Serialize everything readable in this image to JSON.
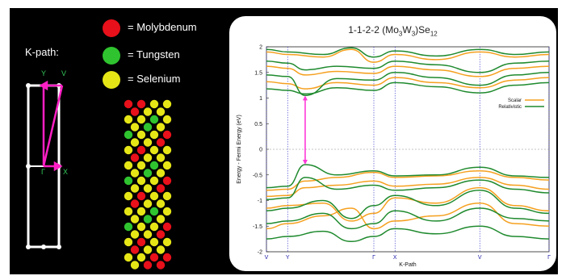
{
  "legend_atoms": [
    {
      "label": "= Molybdenum",
      "color": "#e8101a"
    },
    {
      "label": "= Tungsten",
      "color": "#2fc42f"
    },
    {
      "label": "= Selenium",
      "color": "#e6e617"
    }
  ],
  "kpath": {
    "title": "K-path:",
    "labels": {
      "Y": "Y",
      "V": "V",
      "Gamma": "Γ",
      "X": "X"
    }
  },
  "colors": {
    "panel": "#000000",
    "kpath_lines": "#ffffff",
    "kpath_arrows": "#ff1fc4",
    "kpath_labels": "#34c759",
    "scalar": "#f5a01f",
    "relativistic": "#1f8a2e",
    "gap_arrow": "#ff38d8",
    "kpoint_lines": "#2c2cc8"
  },
  "chart_data": {
    "type": "line",
    "title_parts": {
      "a": "1-1-2-2 (Mo",
      "b": "3",
      "c": "W",
      "d": "3",
      "e": ")Se",
      "f": "12"
    },
    "xlabel": "K-Path",
    "ylabel": "Energy - Fermi Energy (eV)",
    "ylim": [
      -2,
      2
    ],
    "yticks": [
      2,
      1.5,
      1,
      0.5,
      0,
      -0.5,
      -1,
      -1.5,
      -2
    ],
    "ytick_labels": [
      "2",
      "1.5",
      "1",
      "0.5",
      "0",
      "-0.5",
      "-1",
      "-1.5",
      "-2"
    ],
    "kpoints": [
      {
        "label": "V",
        "x": 0.0
      },
      {
        "label": "Y",
        "x": 0.075
      },
      {
        "label": "Γ",
        "x": 0.38
      },
      {
        "label": "X",
        "x": 0.455
      },
      {
        "label": "V",
        "x": 0.755
      },
      {
        "label": "Γ",
        "x": 1.0
      }
    ],
    "fermi_level": 0,
    "legend": [
      {
        "name": "Scalar",
        "color": "#f5a01f"
      },
      {
        "name": "Relativistic",
        "color": "#1f8a2e"
      }
    ],
    "band_gap_arrow": {
      "x": 0.137,
      "from": -0.3,
      "to": 1.05
    },
    "series": [
      {
        "name": "Scalar",
        "bands": [
          [
            [
              0,
              -0.8
            ],
            [
              0.075,
              -0.78
            ],
            [
              0.137,
              -0.62
            ],
            [
              0.25,
              -0.55
            ],
            [
              0.38,
              -0.45
            ],
            [
              0.455,
              -0.55
            ],
            [
              0.6,
              -0.52
            ],
            [
              0.755,
              -0.42
            ],
            [
              0.88,
              -0.55
            ],
            [
              1.0,
              -0.6
            ]
          ],
          [
            [
              0,
              -0.92
            ],
            [
              0.075,
              -0.9
            ],
            [
              0.137,
              -0.75
            ],
            [
              0.25,
              -0.7
            ],
            [
              0.38,
              -0.62
            ],
            [
              0.455,
              -0.72
            ],
            [
              0.6,
              -0.68
            ],
            [
              0.755,
              -0.55
            ],
            [
              0.88,
              -0.7
            ],
            [
              1.0,
              -0.78
            ]
          ],
          [
            [
              0,
              -1.15
            ],
            [
              0.075,
              -1.1
            ],
            [
              0.2,
              -1.05
            ],
            [
              0.3,
              -1.4
            ],
            [
              0.38,
              -1.25
            ],
            [
              0.455,
              -0.95
            ],
            [
              0.6,
              -1.05
            ],
            [
              0.755,
              -0.75
            ],
            [
              0.88,
              -1.1
            ],
            [
              1.0,
              -1.2
            ]
          ],
          [
            [
              0,
              -1.55
            ],
            [
              0.075,
              -1.45
            ],
            [
              0.2,
              -1.3
            ],
            [
              0.3,
              -1.15
            ],
            [
              0.38,
              -1.55
            ],
            [
              0.455,
              -1.4
            ],
            [
              0.6,
              -1.3
            ],
            [
              0.755,
              -1.05
            ],
            [
              0.88,
              -1.45
            ],
            [
              1.0,
              -1.5
            ]
          ],
          [
            [
              0,
              1.9
            ],
            [
              0.075,
              1.85
            ],
            [
              0.2,
              1.8
            ],
            [
              0.3,
              1.95
            ],
            [
              0.38,
              1.7
            ],
            [
              0.455,
              1.85
            ],
            [
              0.6,
              1.75
            ],
            [
              0.755,
              1.9
            ],
            [
              0.88,
              1.8
            ],
            [
              1.0,
              1.85
            ]
          ],
          [
            [
              0,
              1.62
            ],
            [
              0.075,
              1.58
            ],
            [
              0.137,
              1.45
            ],
            [
              0.25,
              1.52
            ],
            [
              0.38,
              1.48
            ],
            [
              0.455,
              1.62
            ],
            [
              0.6,
              1.55
            ],
            [
              0.755,
              1.42
            ],
            [
              0.88,
              1.58
            ],
            [
              1.0,
              1.62
            ]
          ],
          [
            [
              0,
              1.32
            ],
            [
              0.075,
              1.28
            ],
            [
              0.137,
              1.18
            ],
            [
              0.25,
              1.3
            ],
            [
              0.38,
              1.25
            ],
            [
              0.455,
              1.4
            ],
            [
              0.6,
              1.3
            ],
            [
              0.755,
              1.2
            ],
            [
              0.88,
              1.35
            ],
            [
              1.0,
              1.4
            ]
          ]
        ]
      },
      {
        "name": "Relativistic",
        "bands": [
          [
            [
              0,
              -0.75
            ],
            [
              0.075,
              -0.72
            ],
            [
              0.137,
              -0.3
            ],
            [
              0.25,
              -0.5
            ],
            [
              0.38,
              -0.42
            ],
            [
              0.455,
              -0.52
            ],
            [
              0.6,
              -0.5
            ],
            [
              0.755,
              -0.35
            ],
            [
              0.88,
              -0.52
            ],
            [
              1.0,
              -0.55
            ]
          ],
          [
            [
              0,
              -0.98
            ],
            [
              0.075,
              -0.95
            ],
            [
              0.137,
              -0.55
            ],
            [
              0.25,
              -0.78
            ],
            [
              0.38,
              -0.7
            ],
            [
              0.455,
              -0.8
            ],
            [
              0.6,
              -0.75
            ],
            [
              0.755,
              -0.6
            ],
            [
              0.88,
              -0.78
            ],
            [
              1.0,
              -0.85
            ]
          ],
          [
            [
              0,
              -1.2
            ],
            [
              0.075,
              -1.15
            ],
            [
              0.2,
              -1.0
            ],
            [
              0.3,
              -1.35
            ],
            [
              0.38,
              -1.1
            ],
            [
              0.455,
              -0.9
            ],
            [
              0.6,
              -1.1
            ],
            [
              0.755,
              -0.8
            ],
            [
              0.88,
              -1.15
            ],
            [
              1.0,
              -1.25
            ]
          ],
          [
            [
              0,
              -1.45
            ],
            [
              0.075,
              -1.4
            ],
            [
              0.2,
              -1.25
            ],
            [
              0.3,
              -1.55
            ],
            [
              0.38,
              -1.45
            ],
            [
              0.455,
              -1.2
            ],
            [
              0.6,
              -1.4
            ],
            [
              0.755,
              -1.15
            ],
            [
              0.88,
              -1.35
            ],
            [
              1.0,
              -1.4
            ]
          ],
          [
            [
              0,
              -1.75
            ],
            [
              0.075,
              -1.7
            ],
            [
              0.2,
              -1.6
            ],
            [
              0.3,
              -1.8
            ],
            [
              0.38,
              -1.7
            ],
            [
              0.455,
              -1.55
            ],
            [
              0.6,
              -1.65
            ],
            [
              0.755,
              -1.5
            ],
            [
              0.88,
              -1.7
            ],
            [
              1.0,
              -1.75
            ]
          ],
          [
            [
              0,
              1.95
            ],
            [
              0.075,
              1.9
            ],
            [
              0.2,
              1.85
            ],
            [
              0.3,
              1.98
            ],
            [
              0.38,
              1.8
            ],
            [
              0.455,
              1.92
            ],
            [
              0.6,
              1.82
            ],
            [
              0.755,
              1.95
            ],
            [
              0.88,
              1.85
            ],
            [
              1.0,
              1.9
            ]
          ],
          [
            [
              0,
              1.72
            ],
            [
              0.075,
              1.68
            ],
            [
              0.137,
              1.55
            ],
            [
              0.25,
              1.62
            ],
            [
              0.38,
              1.58
            ],
            [
              0.455,
              1.72
            ],
            [
              0.6,
              1.65
            ],
            [
              0.755,
              1.5
            ],
            [
              0.88,
              1.68
            ],
            [
              1.0,
              1.72
            ]
          ],
          [
            [
              0,
              1.45
            ],
            [
              0.075,
              1.42
            ],
            [
              0.137,
              1.05
            ],
            [
              0.25,
              1.38
            ],
            [
              0.38,
              1.35
            ],
            [
              0.455,
              1.5
            ],
            [
              0.6,
              1.4
            ],
            [
              0.755,
              1.25
            ],
            [
              0.88,
              1.45
            ],
            [
              1.0,
              1.5
            ]
          ],
          [
            [
              0,
              1.18
            ],
            [
              0.075,
              1.15
            ],
            [
              0.137,
              1.08
            ],
            [
              0.25,
              1.2
            ],
            [
              0.38,
              1.15
            ],
            [
              0.455,
              1.3
            ],
            [
              0.6,
              1.22
            ],
            [
              0.755,
              1.1
            ],
            [
              0.88,
              1.25
            ],
            [
              1.0,
              1.3
            ]
          ]
        ]
      }
    ]
  }
}
